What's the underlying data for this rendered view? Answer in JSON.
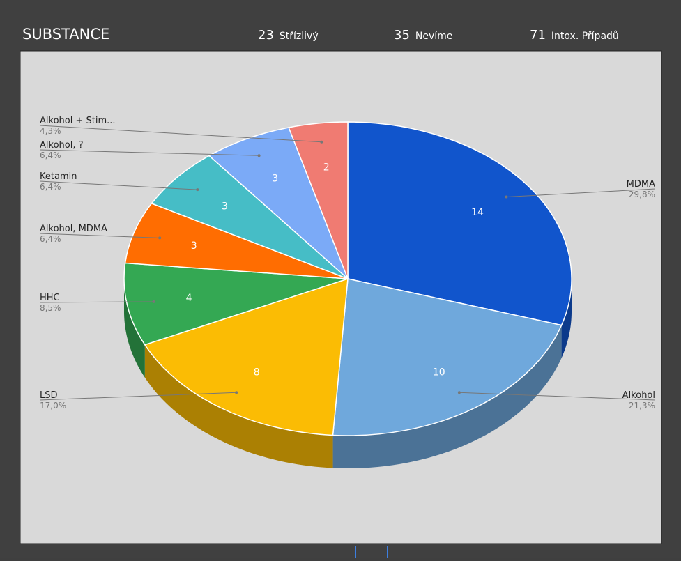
{
  "chart_data": {
    "type": "pie",
    "title": "SUBSTANCE",
    "stats": [
      {
        "value": 23,
        "label": "Střízlivý"
      },
      {
        "value": 35,
        "label": "Nevíme"
      },
      {
        "value": 71,
        "label": "Intox. Případů"
      }
    ],
    "categories": [
      "MDMA",
      "Alkohol",
      "LSD",
      "HHC",
      "Alkohol, MDMA",
      "Ketamin",
      "Alkohol, ?",
      "Alkohol + Stim..."
    ],
    "values": [
      14,
      10,
      8,
      4,
      3,
      3,
      3,
      2
    ],
    "percent_labels": [
      "29,8%",
      "21,3%",
      "17,0%",
      "8,5%",
      "6,4%",
      "6,4%",
      "6,4%",
      "4,3%"
    ],
    "colors": [
      "#1155cc",
      "#6fa8dc",
      "#fbbc04",
      "#34a853",
      "#ff6d01",
      "#46bdc6",
      "#7baaf7",
      "#f07b72"
    ],
    "three_d": true
  }
}
